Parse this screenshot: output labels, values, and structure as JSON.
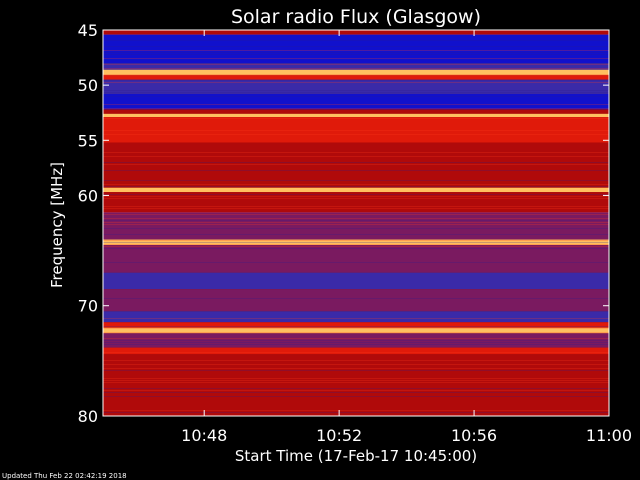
{
  "chart_data": {
    "type": "heatmap",
    "title": "Solar radio Flux (Glasgow)",
    "xlabel": "Start Time (17-Feb-17 10:45:00)",
    "ylabel": "Frequency [MHz]",
    "x_range": [
      "10:45",
      "11:00"
    ],
    "ylim": [
      45,
      80
    ],
    "y_scale": "linear, inverted (45 at top)",
    "x_ticks": [
      {
        "label": "10:48",
        "minutes": 3
      },
      {
        "label": "10:52",
        "minutes": 7
      },
      {
        "label": "10:56",
        "minutes": 11
      },
      {
        "label": "11:00",
        "minutes": 15
      }
    ],
    "y_ticks": [
      {
        "label": "45",
        "value": 45
      },
      {
        "label": "50",
        "value": 50
      },
      {
        "label": "55",
        "value": 55
      },
      {
        "label": "60",
        "value": 60
      },
      {
        "label": "70",
        "value": 70
      },
      {
        "label": "80",
        "value": 80
      }
    ],
    "bands": [
      {
        "from": 45.0,
        "to": 45.4,
        "level": "medium"
      },
      {
        "from": 45.4,
        "to": 48.0,
        "level": "very-low"
      },
      {
        "from": 48.0,
        "to": 48.6,
        "level": "low"
      },
      {
        "from": 48.6,
        "to": 49.1,
        "level": "very-high"
      },
      {
        "from": 49.1,
        "to": 49.5,
        "level": "high"
      },
      {
        "from": 49.5,
        "to": 50.8,
        "level": "low"
      },
      {
        "from": 50.8,
        "to": 52.2,
        "level": "very-low"
      },
      {
        "from": 52.2,
        "to": 52.6,
        "level": "medium"
      },
      {
        "from": 52.6,
        "to": 52.9,
        "level": "very-high"
      },
      {
        "from": 52.9,
        "to": 55.2,
        "level": "high"
      },
      {
        "from": 55.2,
        "to": 57.0,
        "level": "medium"
      },
      {
        "from": 57.0,
        "to": 59.3,
        "level": "medium"
      },
      {
        "from": 59.3,
        "to": 59.7,
        "level": "very-high"
      },
      {
        "from": 59.7,
        "to": 61.5,
        "level": "medium"
      },
      {
        "from": 61.5,
        "to": 64.0,
        "level": "mixed"
      },
      {
        "from": 64.0,
        "to": 64.5,
        "level": "very-high"
      },
      {
        "from": 64.5,
        "to": 67.0,
        "level": "mixed"
      },
      {
        "from": 67.0,
        "to": 68.5,
        "level": "low"
      },
      {
        "from": 68.5,
        "to": 70.5,
        "level": "mixed"
      },
      {
        "from": 70.5,
        "to": 71.5,
        "level": "low"
      },
      {
        "from": 71.5,
        "to": 72.0,
        "level": "high"
      },
      {
        "from": 72.0,
        "to": 72.5,
        "level": "very-high"
      },
      {
        "from": 72.5,
        "to": 73.8,
        "level": "mixed"
      },
      {
        "from": 73.8,
        "to": 74.4,
        "level": "high"
      },
      {
        "from": 74.4,
        "to": 80.0,
        "level": "medium"
      }
    ],
    "colors": {
      "very-low": "#1111cc",
      "low": "#3a2aa8",
      "mixed": "#7a1a60",
      "medium": "#b00a0a",
      "high": "#e01a0a",
      "very-high": "#ffc060"
    }
  },
  "footer": "Updated Thu Feb 22 02:42:19 2018"
}
